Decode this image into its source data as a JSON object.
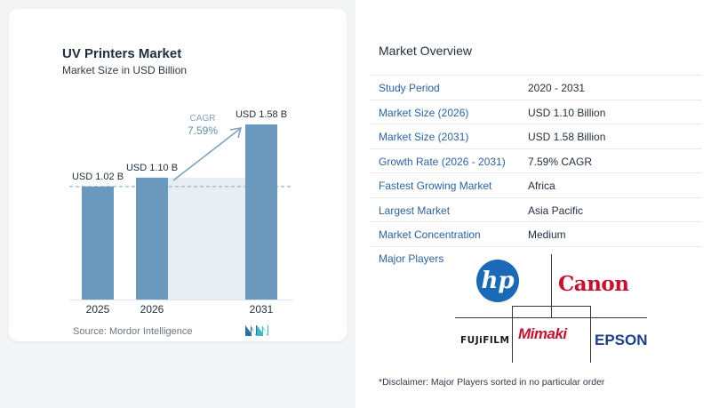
{
  "left_panel": {
    "title": "UV Printers Market",
    "subtitle": "Market Size in USD Billion",
    "source": "Source: Mordor Intelligence",
    "cagr_label": "CAGR",
    "cagr_value": "7.59%"
  },
  "chart_data": {
    "type": "bar",
    "title": "UV Printers Market",
    "subtitle": "Market Size in USD Billion",
    "categories": [
      "2025",
      "2026",
      "2031"
    ],
    "values": [
      1.02,
      1.1,
      1.58
    ],
    "data_labels": [
      "USD 1.02 B",
      "USD 1.10 B",
      "USD 1.58 B"
    ],
    "ylim": [
      0,
      1.58
    ],
    "grid": false,
    "reference_line_value": 1.02,
    "annotation": {
      "label": "CAGR",
      "value": "7.59%"
    },
    "colors": {
      "bar": "#6b98bd",
      "shade": "#e6edf3",
      "dashed": "#8fb0c9",
      "arrow": "#7ea3c2"
    }
  },
  "overview": {
    "title": "Market Overview",
    "rows": [
      {
        "label": "Study Period",
        "value": "2020 - 2031"
      },
      {
        "label": "Market Size (2026)",
        "value": "USD 1.10 Billion"
      },
      {
        "label": "Market Size (2031)",
        "value": "USD 1.58 Billion"
      },
      {
        "label": "Growth Rate (2026 - 2031)",
        "value": "7.59% CAGR"
      },
      {
        "label": "Fastest Growing Market",
        "value": "Africa"
      },
      {
        "label": "Largest Market",
        "value": "Asia Pacific"
      },
      {
        "label": "Market Concentration",
        "value": "Medium"
      }
    ],
    "players_title": "Major Players",
    "players": {
      "hp": "hp",
      "canon": "Canon",
      "fujifilm": "FUJiFILM",
      "mimaki": "Mimaki",
      "epson": "EPSON"
    },
    "disclaimer": "*Disclaimer: Major Players sorted in no particular order"
  }
}
